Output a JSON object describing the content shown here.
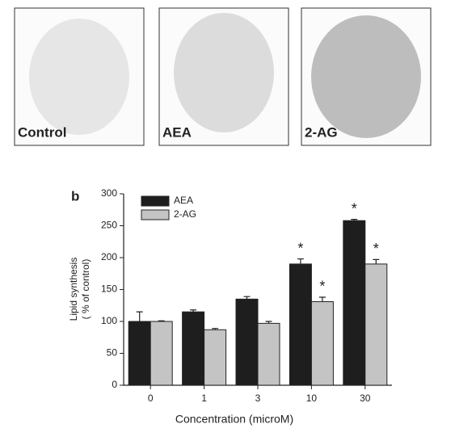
{
  "panels": [
    "Control",
    "AEA",
    "2-AG"
  ],
  "chart_data": {
    "type": "bar",
    "panel_label": "b",
    "categories": [
      "0",
      "1",
      "3",
      "10",
      "30"
    ],
    "series": [
      {
        "name": "AEA",
        "color": "#1e1e1e",
        "values": [
          100,
          115,
          135,
          190,
          258
        ],
        "errors": [
          15,
          3,
          4,
          8,
          2
        ],
        "markers": [
          null,
          null,
          null,
          "*",
          "*"
        ]
      },
      {
        "name": "2-AG",
        "color": "#c4c4c4",
        "values": [
          100,
          87,
          97,
          131,
          190
        ],
        "errors": [
          1,
          2,
          3,
          7,
          7
        ],
        "markers": [
          null,
          null,
          null,
          "*",
          "*"
        ]
      }
    ],
    "ylim": [
      0,
      300
    ],
    "yticks": [
      0,
      50,
      100,
      150,
      200,
      250,
      300
    ],
    "ylabel": [
      "Lipid synthesis",
      "( % of control)"
    ],
    "xlabel": "Concentration (microM)"
  }
}
